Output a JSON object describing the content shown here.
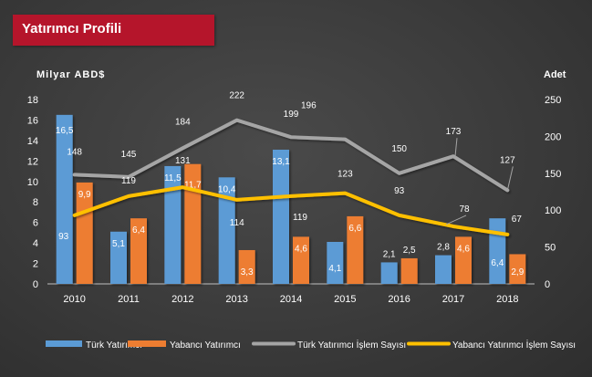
{
  "title": "Yatırımcı Profili",
  "chart_data": {
    "type": "bar",
    "categories": [
      "2010",
      "2011",
      "2012",
      "2013",
      "2014",
      "2015",
      "2016",
      "2017",
      "2018"
    ],
    "series": [
      {
        "name": "Türk Yatırımcı",
        "kind": "bar",
        "axis": "left",
        "color": "#5b9bd5",
        "values": [
          16.5,
          5.1,
          11.5,
          10.4,
          13.1,
          4.1,
          2.1,
          2.8,
          6.4
        ],
        "labels": [
          "16,5",
          "5,1",
          "11,5",
          "10,4",
          "13,1",
          "4,1",
          "2,1",
          "2,8",
          "6,4"
        ]
      },
      {
        "name": "Yabancı Yatırımcı",
        "kind": "bar",
        "axis": "left",
        "color": "#ed7d31",
        "values": [
          9.9,
          6.4,
          11.7,
          3.3,
          4.6,
          6.6,
          2.5,
          4.6,
          2.9
        ],
        "labels": [
          "9,9",
          "6,4",
          "11,7",
          "3,3",
          "4,6",
          "6,6",
          "2,5",
          "4,6",
          "2,9"
        ]
      },
      {
        "name": "Türk Yatırımcı İşlem Sayısı",
        "kind": "line",
        "axis": "right",
        "color": "#a5a5a5",
        "values": [
          148,
          145,
          184,
          222,
          199,
          196,
          150,
          173,
          127
        ],
        "labels": [
          "148",
          "145",
          "184",
          "222",
          "199",
          "196",
          "150",
          "173",
          "127"
        ]
      },
      {
        "name": "Yabancı Yatırımcı İşlem Sayısı",
        "kind": "line",
        "axis": "right",
        "color": "#ffc000",
        "values": [
          93,
          119,
          131,
          114,
          119,
          123,
          93,
          78,
          67
        ],
        "labels": [
          "93",
          "119",
          "131",
          "114",
          "119",
          "123",
          "93",
          "78",
          "67"
        ]
      }
    ],
    "ylabel": "Milyar ABD$",
    "y2label": "Adet",
    "ylim": [
      0,
      18
    ],
    "y2lim": [
      0,
      250
    ],
    "yticks": [
      "0",
      "2",
      "4",
      "6",
      "8",
      "10",
      "12",
      "14",
      "16",
      "18"
    ],
    "y2ticks": [
      "0",
      "50",
      "100",
      "150",
      "200",
      "250"
    ],
    "grid": false,
    "legend": "bottom"
  }
}
